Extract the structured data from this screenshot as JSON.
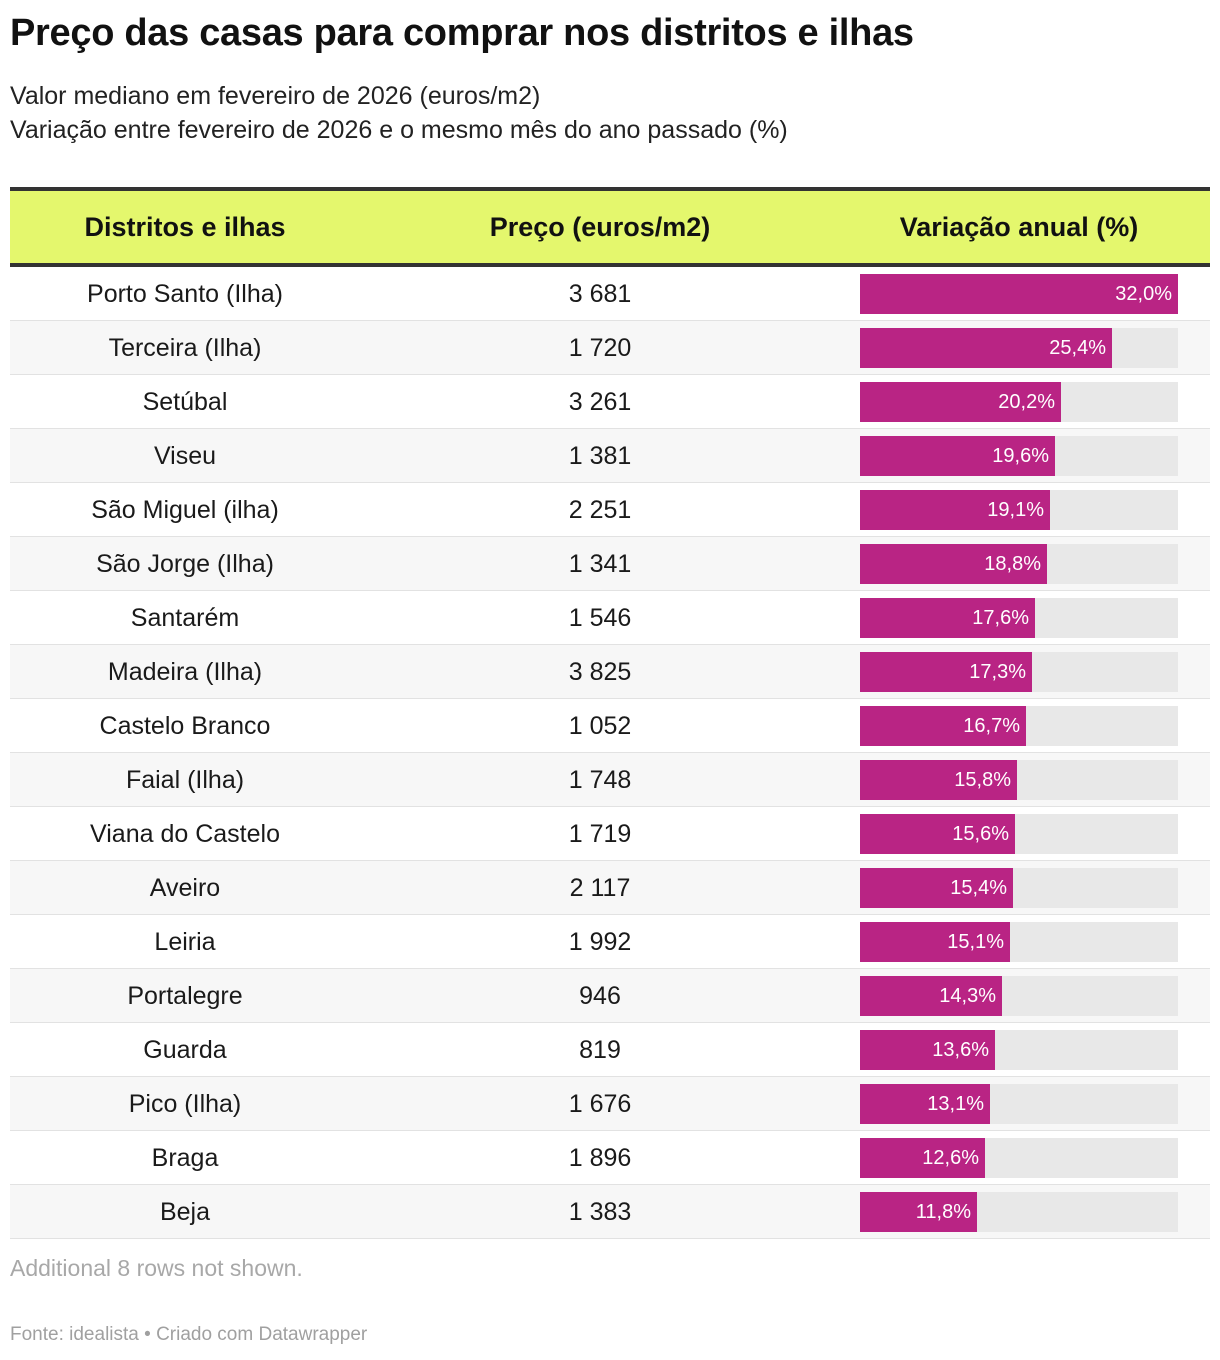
{
  "title": "Preço das casas para comprar nos distritos e ilhas",
  "subtitle_line1": "Valor mediano em fevereiro de 2026 (euros/m2)",
  "subtitle_line2": "Variação entre fevereiro de 2026 e o mesmo mês do ano passado (%)",
  "colors": {
    "header_bg": "#e4f76d",
    "bar": "#b92484",
    "bar_track": "#e8e8e8"
  },
  "chart_data": {
    "type": "table",
    "columns": [
      "Distritos e ilhas",
      "Preço (euros/m2)",
      "Variação anual (%)"
    ],
    "bar_max": 32.0,
    "rows": [
      {
        "name": "Porto Santo (Ilha)",
        "price": "3 681",
        "change": 32.0,
        "change_label": "32,0%"
      },
      {
        "name": "Terceira (Ilha)",
        "price": "1 720",
        "change": 25.4,
        "change_label": "25,4%"
      },
      {
        "name": "Setúbal",
        "price": "3 261",
        "change": 20.2,
        "change_label": "20,2%"
      },
      {
        "name": "Viseu",
        "price": "1 381",
        "change": 19.6,
        "change_label": "19,6%"
      },
      {
        "name": "São Miguel (ilha)",
        "price": "2 251",
        "change": 19.1,
        "change_label": "19,1%"
      },
      {
        "name": "São Jorge (Ilha)",
        "price": "1 341",
        "change": 18.8,
        "change_label": "18,8%"
      },
      {
        "name": "Santarém",
        "price": "1 546",
        "change": 17.6,
        "change_label": "17,6%"
      },
      {
        "name": "Madeira (Ilha)",
        "price": "3 825",
        "change": 17.3,
        "change_label": "17,3%"
      },
      {
        "name": "Castelo Branco",
        "price": "1 052",
        "change": 16.7,
        "change_label": "16,7%"
      },
      {
        "name": "Faial (Ilha)",
        "price": "1 748",
        "change": 15.8,
        "change_label": "15,8%"
      },
      {
        "name": "Viana do Castelo",
        "price": "1 719",
        "change": 15.6,
        "change_label": "15,6%"
      },
      {
        "name": "Aveiro",
        "price": "2 117",
        "change": 15.4,
        "change_label": "15,4%"
      },
      {
        "name": "Leiria",
        "price": "1 992",
        "change": 15.1,
        "change_label": "15,1%"
      },
      {
        "name": "Portalegre",
        "price": "946",
        "change": 14.3,
        "change_label": "14,3%"
      },
      {
        "name": "Guarda",
        "price": "819",
        "change": 13.6,
        "change_label": "13,6%"
      },
      {
        "name": "Pico (Ilha)",
        "price": "1 676",
        "change": 13.1,
        "change_label": "13,1%"
      },
      {
        "name": "Braga",
        "price": "1 896",
        "change": 12.6,
        "change_label": "12,6%"
      },
      {
        "name": "Beja",
        "price": "1 383",
        "change": 11.8,
        "change_label": "11,8%"
      }
    ]
  },
  "note": "Additional 8 rows not shown.",
  "footer": "Fonte: idealista • Criado com Datawrapper"
}
